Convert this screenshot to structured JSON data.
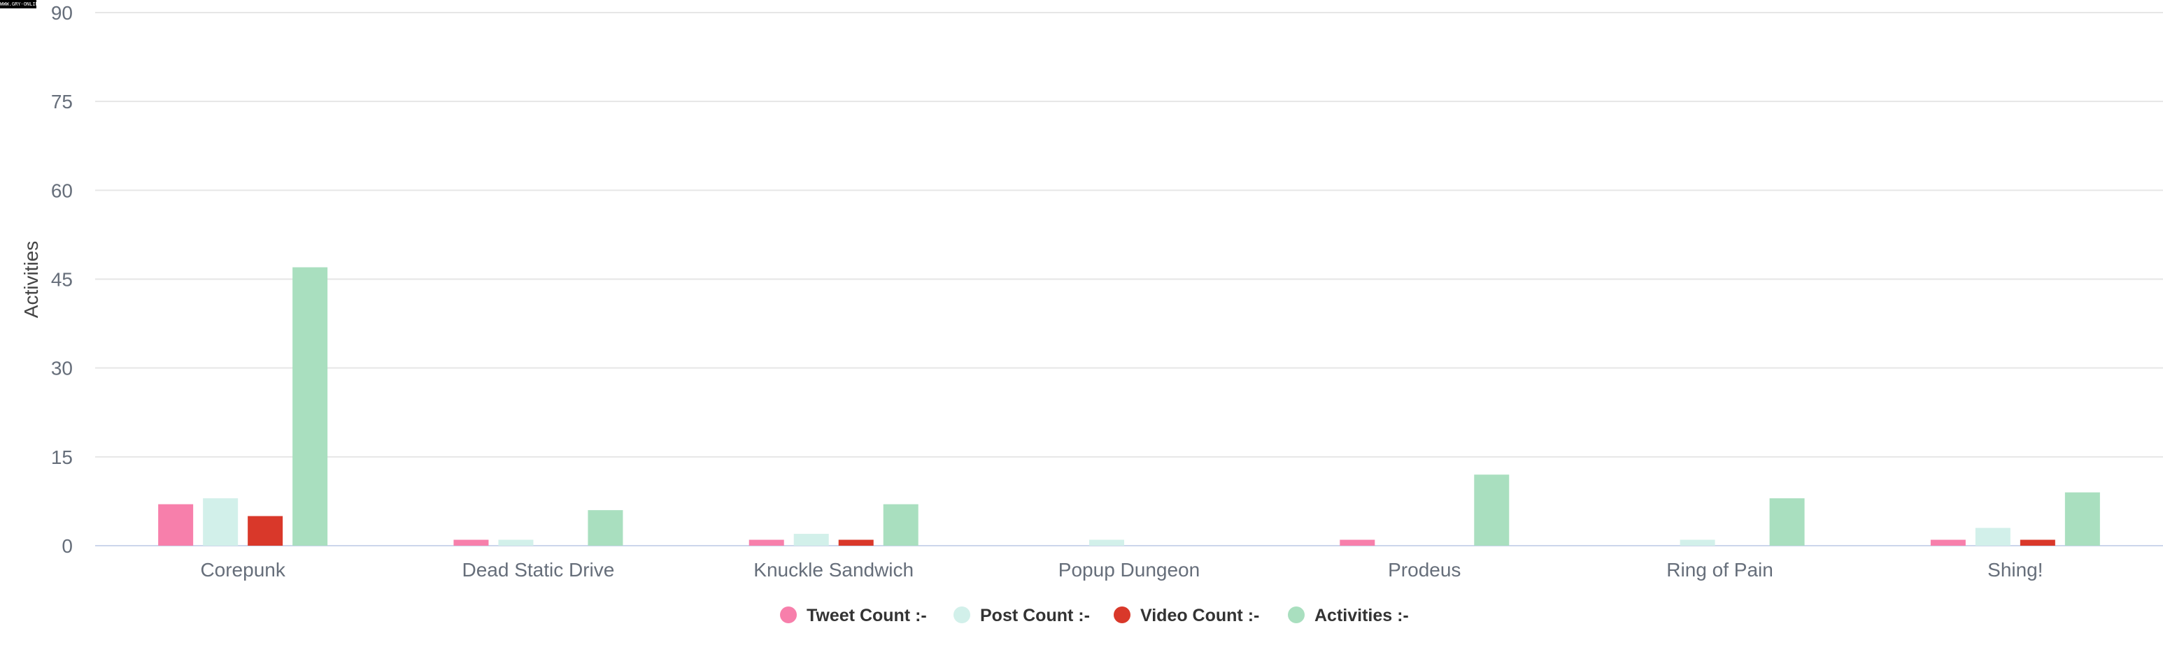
{
  "watermark": "WWW.GRY-ONLINE.PL",
  "chart_data": {
    "type": "bar",
    "title": "",
    "xlabel": "",
    "ylabel": "Activities",
    "ylim": [
      0,
      90
    ],
    "yticks": [
      0,
      15,
      30,
      45,
      60,
      75,
      90
    ],
    "grid": true,
    "legend_position": "bottom",
    "categories": [
      "Corepunk",
      "Dead Static Drive",
      "Knuckle Sandwich",
      "Popup Dungeon",
      "Prodeus",
      "Ring of Pain",
      "Shing!"
    ],
    "series": [
      {
        "name": "Tweet Count :-",
        "color": "#f77fab",
        "values": [
          7,
          1,
          1,
          0,
          1,
          0,
          1
        ]
      },
      {
        "name": "Post Count :-",
        "color": "#d2f0ea",
        "values": [
          8,
          1,
          2,
          1,
          0,
          1,
          3
        ]
      },
      {
        "name": "Video Count :-",
        "color": "#d9382a",
        "values": [
          5,
          0,
          1,
          0,
          0,
          0,
          1
        ]
      },
      {
        "name": "Activities :-",
        "color": "#a9dfbf",
        "values": [
          47,
          6,
          7,
          0,
          12,
          8,
          9
        ]
      }
    ]
  }
}
